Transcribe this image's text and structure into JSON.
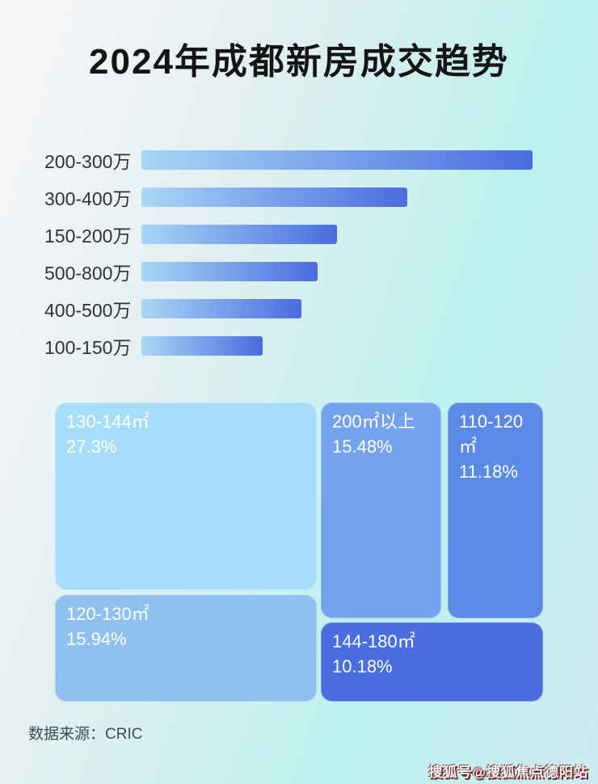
{
  "page": {
    "title": "2024年成都新房成交趋势",
    "source_label": "数据来源：CRIC",
    "watermark": "搜狐号@搜狐焦点德阳站"
  },
  "colors": {
    "title_color": "#141414",
    "bar_label_color": "#2e3338",
    "bar_gradient_start": "#a9d6f5",
    "bar_gradient_end": "#4a6ce0",
    "background_top_left": "#f5f6f8",
    "background_right": "#bdf1ee",
    "background_bottom_left": "#d5eaf3",
    "treemap_text_color": "#ffffff",
    "watermark_shadow_color": "#7d3232"
  },
  "chart_data": [
    {
      "type": "bar",
      "orientation": "horizontal",
      "title": "2024年成都新房成交趋势",
      "categories": [
        "200-300万",
        "300-400万",
        "150-200万",
        "500-800万",
        "400-500万",
        "100-150万"
      ],
      "values": [
        100,
        68,
        50,
        45,
        41,
        31
      ],
      "value_note": "relative bar lengths estimated from pixels; no axis or data labels shown",
      "xlabel": "",
      "ylabel": "",
      "grid": false,
      "legend": false,
      "bar_color_gradient": [
        "#a9d6f5",
        "#4a6ce0"
      ]
    },
    {
      "type": "treemap",
      "title": "",
      "items": [
        {
          "label": "130-144㎡",
          "percent": "27.3%",
          "value": 27.3,
          "color": "#a6defa"
        },
        {
          "label": "200㎡以上",
          "percent": "15.48%",
          "value": 15.48,
          "color": "#73a3ec"
        },
        {
          "label": "110-120㎡",
          "percent": "11.18%",
          "value": 11.18,
          "color": "#5b8ae6"
        },
        {
          "label": "120-130㎡",
          "percent": "15.94%",
          "value": 15.94,
          "color": "#8fc0ef"
        },
        {
          "label": "144-180㎡",
          "percent": "10.18%",
          "value": 10.18,
          "color": "#4a6ee0"
        }
      ]
    }
  ]
}
